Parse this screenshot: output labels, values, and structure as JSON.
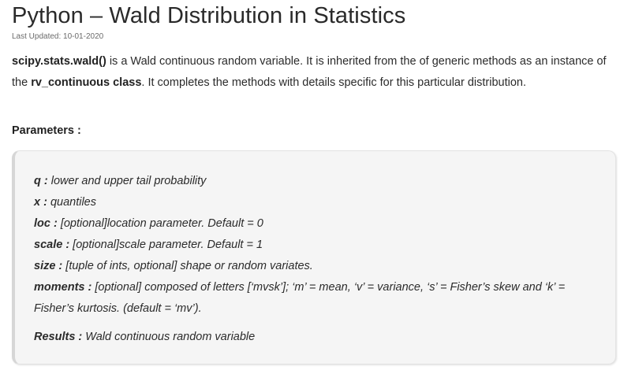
{
  "article": {
    "title": "Python – Wald Distribution in Statistics",
    "last_updated": "Last Updated: 10-01-2020",
    "intro": {
      "code_name": "scipy.stats.wald()",
      "text_1": " is a Wald continuous random variable. It is inherited from the of generic methods as an instance of the ",
      "class_name": "rv_continuous class",
      "text_2": ". It completes the methods with details specific for this particular distribution."
    },
    "parameters_heading": "Parameters :",
    "parameters": [
      {
        "name": "q :",
        "desc": " lower and upper tail probability"
      },
      {
        "name": "x :",
        "desc": " quantiles"
      },
      {
        "name": "loc :",
        "desc": " [optional]location parameter. Default = 0"
      },
      {
        "name": "scale :",
        "desc": " [optional]scale parameter. Default = 1"
      },
      {
        "name": "size :",
        "desc": " [tuple of ints, optional] shape or random variates."
      },
      {
        "name": "moments :",
        "desc": " [optional] composed of letters [‘mvsk’]; ‘m’ = mean, ‘v’ = variance, ‘s’ = Fisher’s skew and ‘k’ = Fisher’s kurtosis. (default = ‘mv’)."
      }
    ],
    "results": {
      "name": "Results :",
      "desc": " Wald continuous random variable"
    }
  }
}
